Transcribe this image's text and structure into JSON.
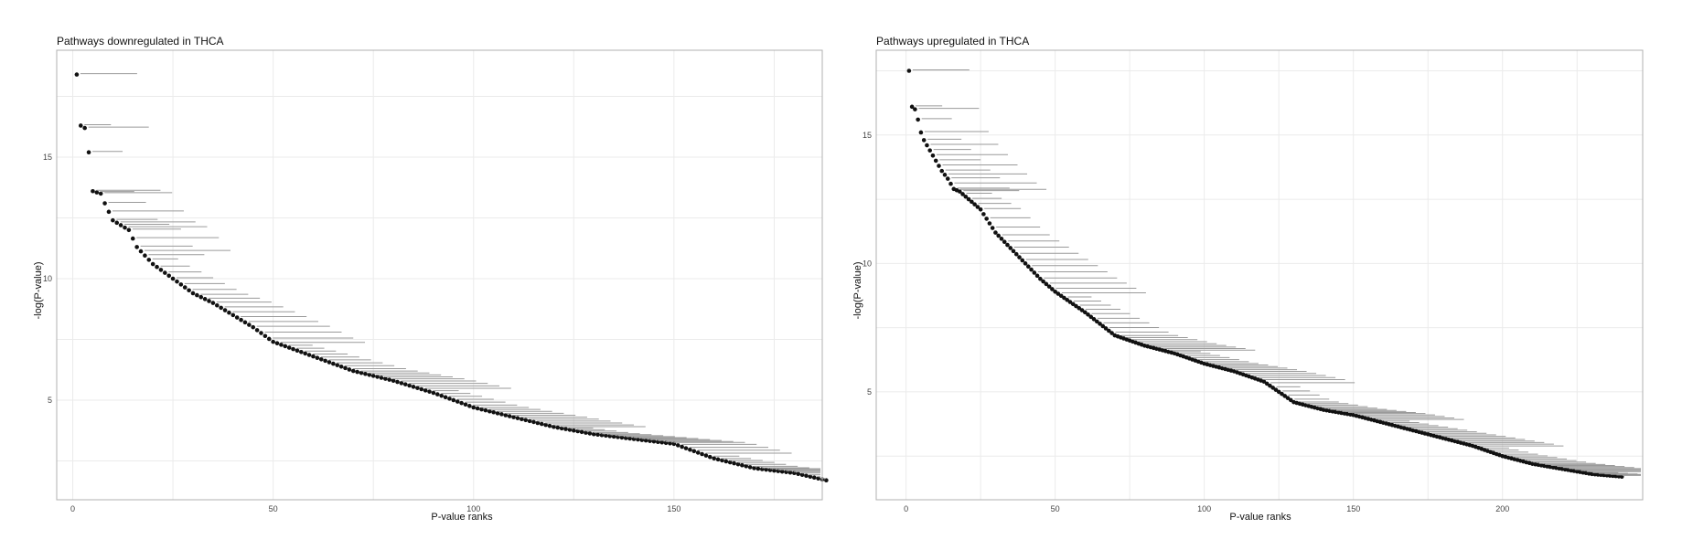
{
  "chart_data": [
    {
      "type": "scatter",
      "title": "Pathways downregulated in THCA",
      "xlabel": "P-value ranks",
      "ylabel": "-log(P-value)",
      "xlim": [
        -4,
        187
      ],
      "ylim": [
        0.9,
        19.4
      ],
      "x_ticks": [
        0,
        50,
        100,
        150
      ],
      "y_ticks": [
        5,
        10,
        15
      ],
      "grid": true,
      "n_points": 188,
      "curve": {
        "x": [
          1,
          2,
          3,
          4,
          5,
          7,
          8,
          10,
          12,
          14,
          16,
          20,
          25,
          30,
          35,
          40,
          45,
          50,
          60,
          70,
          80,
          90,
          100,
          110,
          120,
          130,
          140,
          150,
          160,
          170,
          180,
          188
        ],
        "y": [
          18.4,
          16.3,
          16.2,
          15.2,
          13.6,
          13.5,
          13.1,
          12.4,
          12.2,
          12.0,
          11.3,
          10.6,
          10.0,
          9.4,
          9.0,
          8.5,
          8.0,
          7.4,
          6.8,
          6.2,
          5.8,
          5.3,
          4.7,
          4.3,
          3.9,
          3.6,
          3.4,
          3.2,
          2.6,
          2.2,
          2.0,
          1.7
        ]
      }
    },
    {
      "type": "scatter",
      "title": "Pathways upregulated in THCA",
      "xlabel": "P-value ranks",
      "ylabel": "-log(P-value)",
      "xlim": [
        -10,
        247
      ],
      "ylim": [
        0.8,
        18.3
      ],
      "x_ticks": [
        0,
        50,
        100,
        150,
        200
      ],
      "y_ticks": [
        5,
        10,
        15
      ],
      "grid": true,
      "n_points": 240,
      "curve": {
        "x": [
          1,
          2,
          3,
          4,
          5,
          6,
          7,
          8,
          10,
          12,
          14,
          16,
          18,
          20,
          25,
          30,
          35,
          40,
          45,
          50,
          60,
          70,
          80,
          90,
          100,
          110,
          120,
          130,
          140,
          150,
          160,
          170,
          180,
          190,
          200,
          210,
          220,
          230,
          240
        ],
        "y": [
          17.5,
          16.1,
          16.0,
          15.6,
          15.1,
          14.8,
          14.6,
          14.4,
          14.0,
          13.6,
          13.3,
          12.9,
          12.8,
          12.6,
          12.1,
          11.2,
          10.6,
          10.0,
          9.4,
          8.9,
          8.1,
          7.2,
          6.8,
          6.5,
          6.1,
          5.8,
          5.4,
          4.6,
          4.3,
          4.1,
          3.8,
          3.5,
          3.2,
          2.9,
          2.5,
          2.2,
          2.0,
          1.8,
          1.7
        ]
      }
    }
  ]
}
